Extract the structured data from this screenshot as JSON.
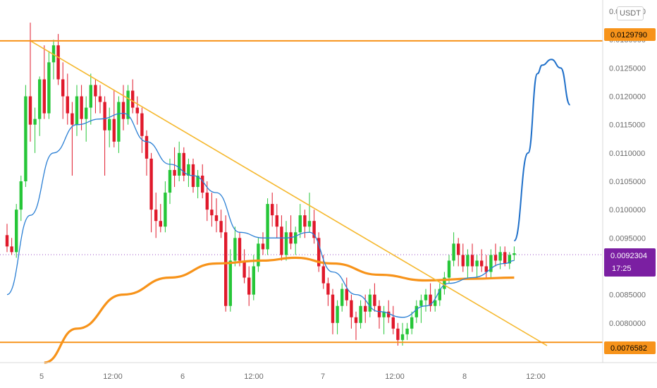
{
  "chart_data": {
    "type": "candlestick",
    "quote_unit": "USDT",
    "y_ticks": [
      "0.0135000",
      "0.0130000",
      "0.0125000",
      "0.0120000",
      "0.0115000",
      "0.0110000",
      "0.0105000",
      "0.0100000",
      "0.0095000",
      "0.0090000",
      "0.0085000",
      "0.0080000",
      "0.0075000"
    ],
    "y_range": [
      0.0073,
      0.0137
    ],
    "x_ticks": [
      "5",
      "12:00",
      "6",
      "12:00",
      "7",
      "12:00",
      "8",
      "12:00"
    ],
    "horizontal_levels": [
      {
        "value": 0.012979,
        "label": "0.0129790",
        "color": "#f7931a"
      },
      {
        "value": 0.0076582,
        "label": "0.0076582",
        "color": "#f7931a"
      }
    ],
    "current_price": {
      "value": 0.00923,
      "label": "0.0092304",
      "countdown": "17:25",
      "color": "#7b1fa2"
    },
    "trendline": {
      "from_bar": 5,
      "from_price": 0.01298,
      "to_bar": 79,
      "to_price": 0.0076,
      "color": "#f5b82e"
    },
    "ma_fast_color": "#2a7fd4",
    "ma_slow_color": "#f7931a",
    "projection_color": "#1e6fc9",
    "up_color": "#26c638",
    "down_color": "#e0192b",
    "candles": [
      [
        0.00955,
        0.00975,
        0.00925,
        0.00935
      ],
      [
        0.00935,
        0.0095,
        0.0092,
        0.00925
      ],
      [
        0.00925,
        0.0101,
        0.00915,
        0.01
      ],
      [
        0.01,
        0.0106,
        0.0098,
        0.0105
      ],
      [
        0.0105,
        0.0122,
        0.0104,
        0.012
      ],
      [
        0.012,
        0.0133,
        0.0112,
        0.0115
      ],
      [
        0.0115,
        0.0118,
        0.011,
        0.0116
      ],
      [
        0.0116,
        0.01235,
        0.0113,
        0.0123
      ],
      [
        0.0123,
        0.0129,
        0.0116,
        0.0117
      ],
      [
        0.0117,
        0.0128,
        0.0116,
        0.0126
      ],
      [
        0.0126,
        0.013,
        0.0123,
        0.0129
      ],
      [
        0.0129,
        0.0131,
        0.0122,
        0.0123
      ],
      [
        0.0123,
        0.0126,
        0.0116,
        0.012
      ],
      [
        0.012,
        0.0124,
        0.0115,
        0.0117
      ],
      [
        0.0117,
        0.0119,
        0.0106,
        0.0115
      ],
      [
        0.0115,
        0.0122,
        0.0113,
        0.012
      ],
      [
        0.012,
        0.0122,
        0.0114,
        0.0116
      ],
      [
        0.0116,
        0.012,
        0.0112,
        0.0118
      ],
      [
        0.0118,
        0.0124,
        0.0115,
        0.0122
      ],
      [
        0.0122,
        0.0123,
        0.0117,
        0.012
      ],
      [
        0.012,
        0.0122,
        0.0117,
        0.0119
      ],
      [
        0.0119,
        0.012,
        0.0106,
        0.0114
      ],
      [
        0.0114,
        0.0118,
        0.0111,
        0.0116
      ],
      [
        0.0116,
        0.0121,
        0.0111,
        0.0112
      ],
      [
        0.0112,
        0.012,
        0.011,
        0.0119
      ],
      [
        0.0119,
        0.0122,
        0.0114,
        0.0116
      ],
      [
        0.0116,
        0.0122,
        0.0115,
        0.0121
      ],
      [
        0.0121,
        0.0123,
        0.0117,
        0.0118
      ],
      [
        0.0118,
        0.012,
        0.0115,
        0.0117
      ],
      [
        0.0117,
        0.0118,
        0.011,
        0.0113
      ],
      [
        0.0113,
        0.0114,
        0.0106,
        0.0109
      ],
      [
        0.0109,
        0.011,
        0.0096,
        0.01
      ],
      [
        0.01,
        0.0103,
        0.0095,
        0.0098
      ],
      [
        0.0098,
        0.0101,
        0.0096,
        0.0097
      ],
      [
        0.0097,
        0.0105,
        0.0096,
        0.0103
      ],
      [
        0.0103,
        0.0109,
        0.0101,
        0.0107
      ],
      [
        0.0107,
        0.0111,
        0.0104,
        0.0106
      ],
      [
        0.0106,
        0.0112,
        0.0105,
        0.011
      ],
      [
        0.011,
        0.0111,
        0.0105,
        0.0106
      ],
      [
        0.0106,
        0.0109,
        0.0104,
        0.0108
      ],
      [
        0.0108,
        0.0109,
        0.0103,
        0.0104
      ],
      [
        0.0104,
        0.0107,
        0.0102,
        0.0106
      ],
      [
        0.0106,
        0.0108,
        0.0102,
        0.0103
      ],
      [
        0.0103,
        0.0105,
        0.0098,
        0.01
      ],
      [
        0.01,
        0.0103,
        0.0097,
        0.0099
      ],
      [
        0.0099,
        0.0102,
        0.0096,
        0.0098
      ],
      [
        0.0098,
        0.01,
        0.0095,
        0.0096
      ],
      [
        0.0096,
        0.0099,
        0.0082,
        0.0083
      ],
      [
        0.0083,
        0.0093,
        0.0082,
        0.0091
      ],
      [
        0.0091,
        0.0097,
        0.009,
        0.0095
      ],
      [
        0.0095,
        0.0096,
        0.009,
        0.0091
      ],
      [
        0.0091,
        0.0093,
        0.0087,
        0.0088
      ],
      [
        0.0088,
        0.009,
        0.0083,
        0.0085
      ],
      [
        0.0085,
        0.0092,
        0.0084,
        0.009
      ],
      [
        0.009,
        0.0095,
        0.0089,
        0.0094
      ],
      [
        0.0094,
        0.0096,
        0.0092,
        0.0093
      ],
      [
        0.0093,
        0.0102,
        0.0092,
        0.0101
      ],
      [
        0.0101,
        0.0103,
        0.0097,
        0.0099
      ],
      [
        0.0099,
        0.0101,
        0.0095,
        0.0097
      ],
      [
        0.0097,
        0.0099,
        0.0091,
        0.0092
      ],
      [
        0.0092,
        0.0098,
        0.0091,
        0.0096
      ],
      [
        0.0096,
        0.0099,
        0.0093,
        0.0094
      ],
      [
        0.0094,
        0.0097,
        0.0092,
        0.0096
      ],
      [
        0.0096,
        0.0101,
        0.0095,
        0.0099
      ],
      [
        0.0099,
        0.01,
        0.0095,
        0.0097
      ],
      [
        0.0097,
        0.0103,
        0.0096,
        0.0098
      ],
      [
        0.0098,
        0.01,
        0.0094,
        0.0095
      ],
      [
        0.0095,
        0.0096,
        0.0089,
        0.009
      ],
      [
        0.009,
        0.0092,
        0.0086,
        0.0087
      ],
      [
        0.0087,
        0.0088,
        0.0083,
        0.0085
      ],
      [
        0.0085,
        0.0086,
        0.0078,
        0.008
      ],
      [
        0.008,
        0.0084,
        0.0078,
        0.0083
      ],
      [
        0.0083,
        0.0087,
        0.0082,
        0.0086
      ],
      [
        0.0086,
        0.0088,
        0.0083,
        0.0084
      ],
      [
        0.0084,
        0.0085,
        0.0079,
        0.0081
      ],
      [
        0.0081,
        0.0082,
        0.0077,
        0.008
      ],
      [
        0.008,
        0.0084,
        0.0079,
        0.0083
      ],
      [
        0.0083,
        0.0085,
        0.008,
        0.0082
      ],
      [
        0.0082,
        0.0086,
        0.0081,
        0.0085
      ],
      [
        0.0085,
        0.0087,
        0.0082,
        0.0083
      ],
      [
        0.0083,
        0.0084,
        0.0079,
        0.0081
      ],
      [
        0.0081,
        0.0083,
        0.0078,
        0.0082
      ],
      [
        0.0082,
        0.0084,
        0.008,
        0.0081
      ],
      [
        0.0081,
        0.0083,
        0.0078,
        0.0079
      ],
      [
        0.0079,
        0.008,
        0.0076,
        0.0077
      ],
      [
        0.0077,
        0.008,
        0.0076,
        0.0078
      ],
      [
        0.0078,
        0.008,
        0.0077,
        0.0079
      ],
      [
        0.0079,
        0.0082,
        0.0078,
        0.0081
      ],
      [
        0.0081,
        0.0084,
        0.008,
        0.0083
      ],
      [
        0.0083,
        0.0085,
        0.008,
        0.0084
      ],
      [
        0.0084,
        0.0086,
        0.0082,
        0.0085
      ],
      [
        0.0085,
        0.0087,
        0.0082,
        0.0083
      ],
      [
        0.0083,
        0.0086,
        0.0082,
        0.0084
      ],
      [
        0.0084,
        0.0087,
        0.0083,
        0.0086
      ],
      [
        0.0086,
        0.0089,
        0.0085,
        0.0088
      ],
      [
        0.0088,
        0.0092,
        0.0087,
        0.0091
      ],
      [
        0.0091,
        0.0096,
        0.009,
        0.0094
      ],
      [
        0.0094,
        0.0095,
        0.009,
        0.0092
      ],
      [
        0.0092,
        0.0094,
        0.0089,
        0.009
      ],
      [
        0.009,
        0.0093,
        0.0088,
        0.0092
      ],
      [
        0.0092,
        0.0094,
        0.0089,
        0.009
      ],
      [
        0.009,
        0.0092,
        0.0088,
        0.0091
      ],
      [
        0.0091,
        0.0093,
        0.0089,
        0.009
      ],
      [
        0.009,
        0.0092,
        0.0088,
        0.0089
      ],
      [
        0.0089,
        0.0093,
        0.0088,
        0.0092
      ],
      [
        0.0092,
        0.0094,
        0.009,
        0.0091
      ],
      [
        0.0091,
        0.00935,
        0.00895,
        0.00925
      ],
      [
        0.00925,
        0.00935,
        0.009,
        0.00905
      ],
      [
        0.00905,
        0.00925,
        0.00895,
        0.0092
      ],
      [
        0.0092,
        0.00935,
        0.0091,
        0.00923
      ]
    ],
    "ma_fast": [
      [
        0,
        0.0085
      ],
      [
        5,
        0.0099
      ],
      [
        10,
        0.011
      ],
      [
        15,
        0.0115
      ],
      [
        20,
        0.0116
      ],
      [
        25,
        0.0117
      ],
      [
        30,
        0.0112
      ],
      [
        35,
        0.0108
      ],
      [
        40,
        0.0106
      ],
      [
        45,
        0.0103
      ],
      [
        50,
        0.0096
      ],
      [
        55,
        0.0095
      ],
      [
        60,
        0.0095
      ],
      [
        65,
        0.0096
      ],
      [
        70,
        0.0089
      ],
      [
        75,
        0.0085
      ],
      [
        80,
        0.0082
      ],
      [
        85,
        0.0081
      ],
      [
        90,
        0.0083
      ],
      [
        95,
        0.0087
      ],
      [
        100,
        0.0088
      ],
      [
        107,
        0.00905
      ],
      [
        109,
        0.0091
      ]
    ],
    "ma_slow": [
      [
        8,
        0.0073
      ],
      [
        15,
        0.0079
      ],
      [
        25,
        0.0085
      ],
      [
        35,
        0.0088
      ],
      [
        45,
        0.00905
      ],
      [
        55,
        0.0091
      ],
      [
        62,
        0.00915
      ],
      [
        70,
        0.00905
      ],
      [
        80,
        0.00885
      ],
      [
        90,
        0.00875
      ],
      [
        100,
        0.00878
      ],
      [
        109,
        0.0088
      ]
    ],
    "projection": [
      [
        109,
        0.00945
      ],
      [
        112,
        0.011
      ],
      [
        114,
        0.0124
      ],
      [
        115,
        0.01255
      ],
      [
        117,
        0.01265
      ],
      [
        119,
        0.0125
      ],
      [
        121,
        0.01185
      ]
    ]
  }
}
